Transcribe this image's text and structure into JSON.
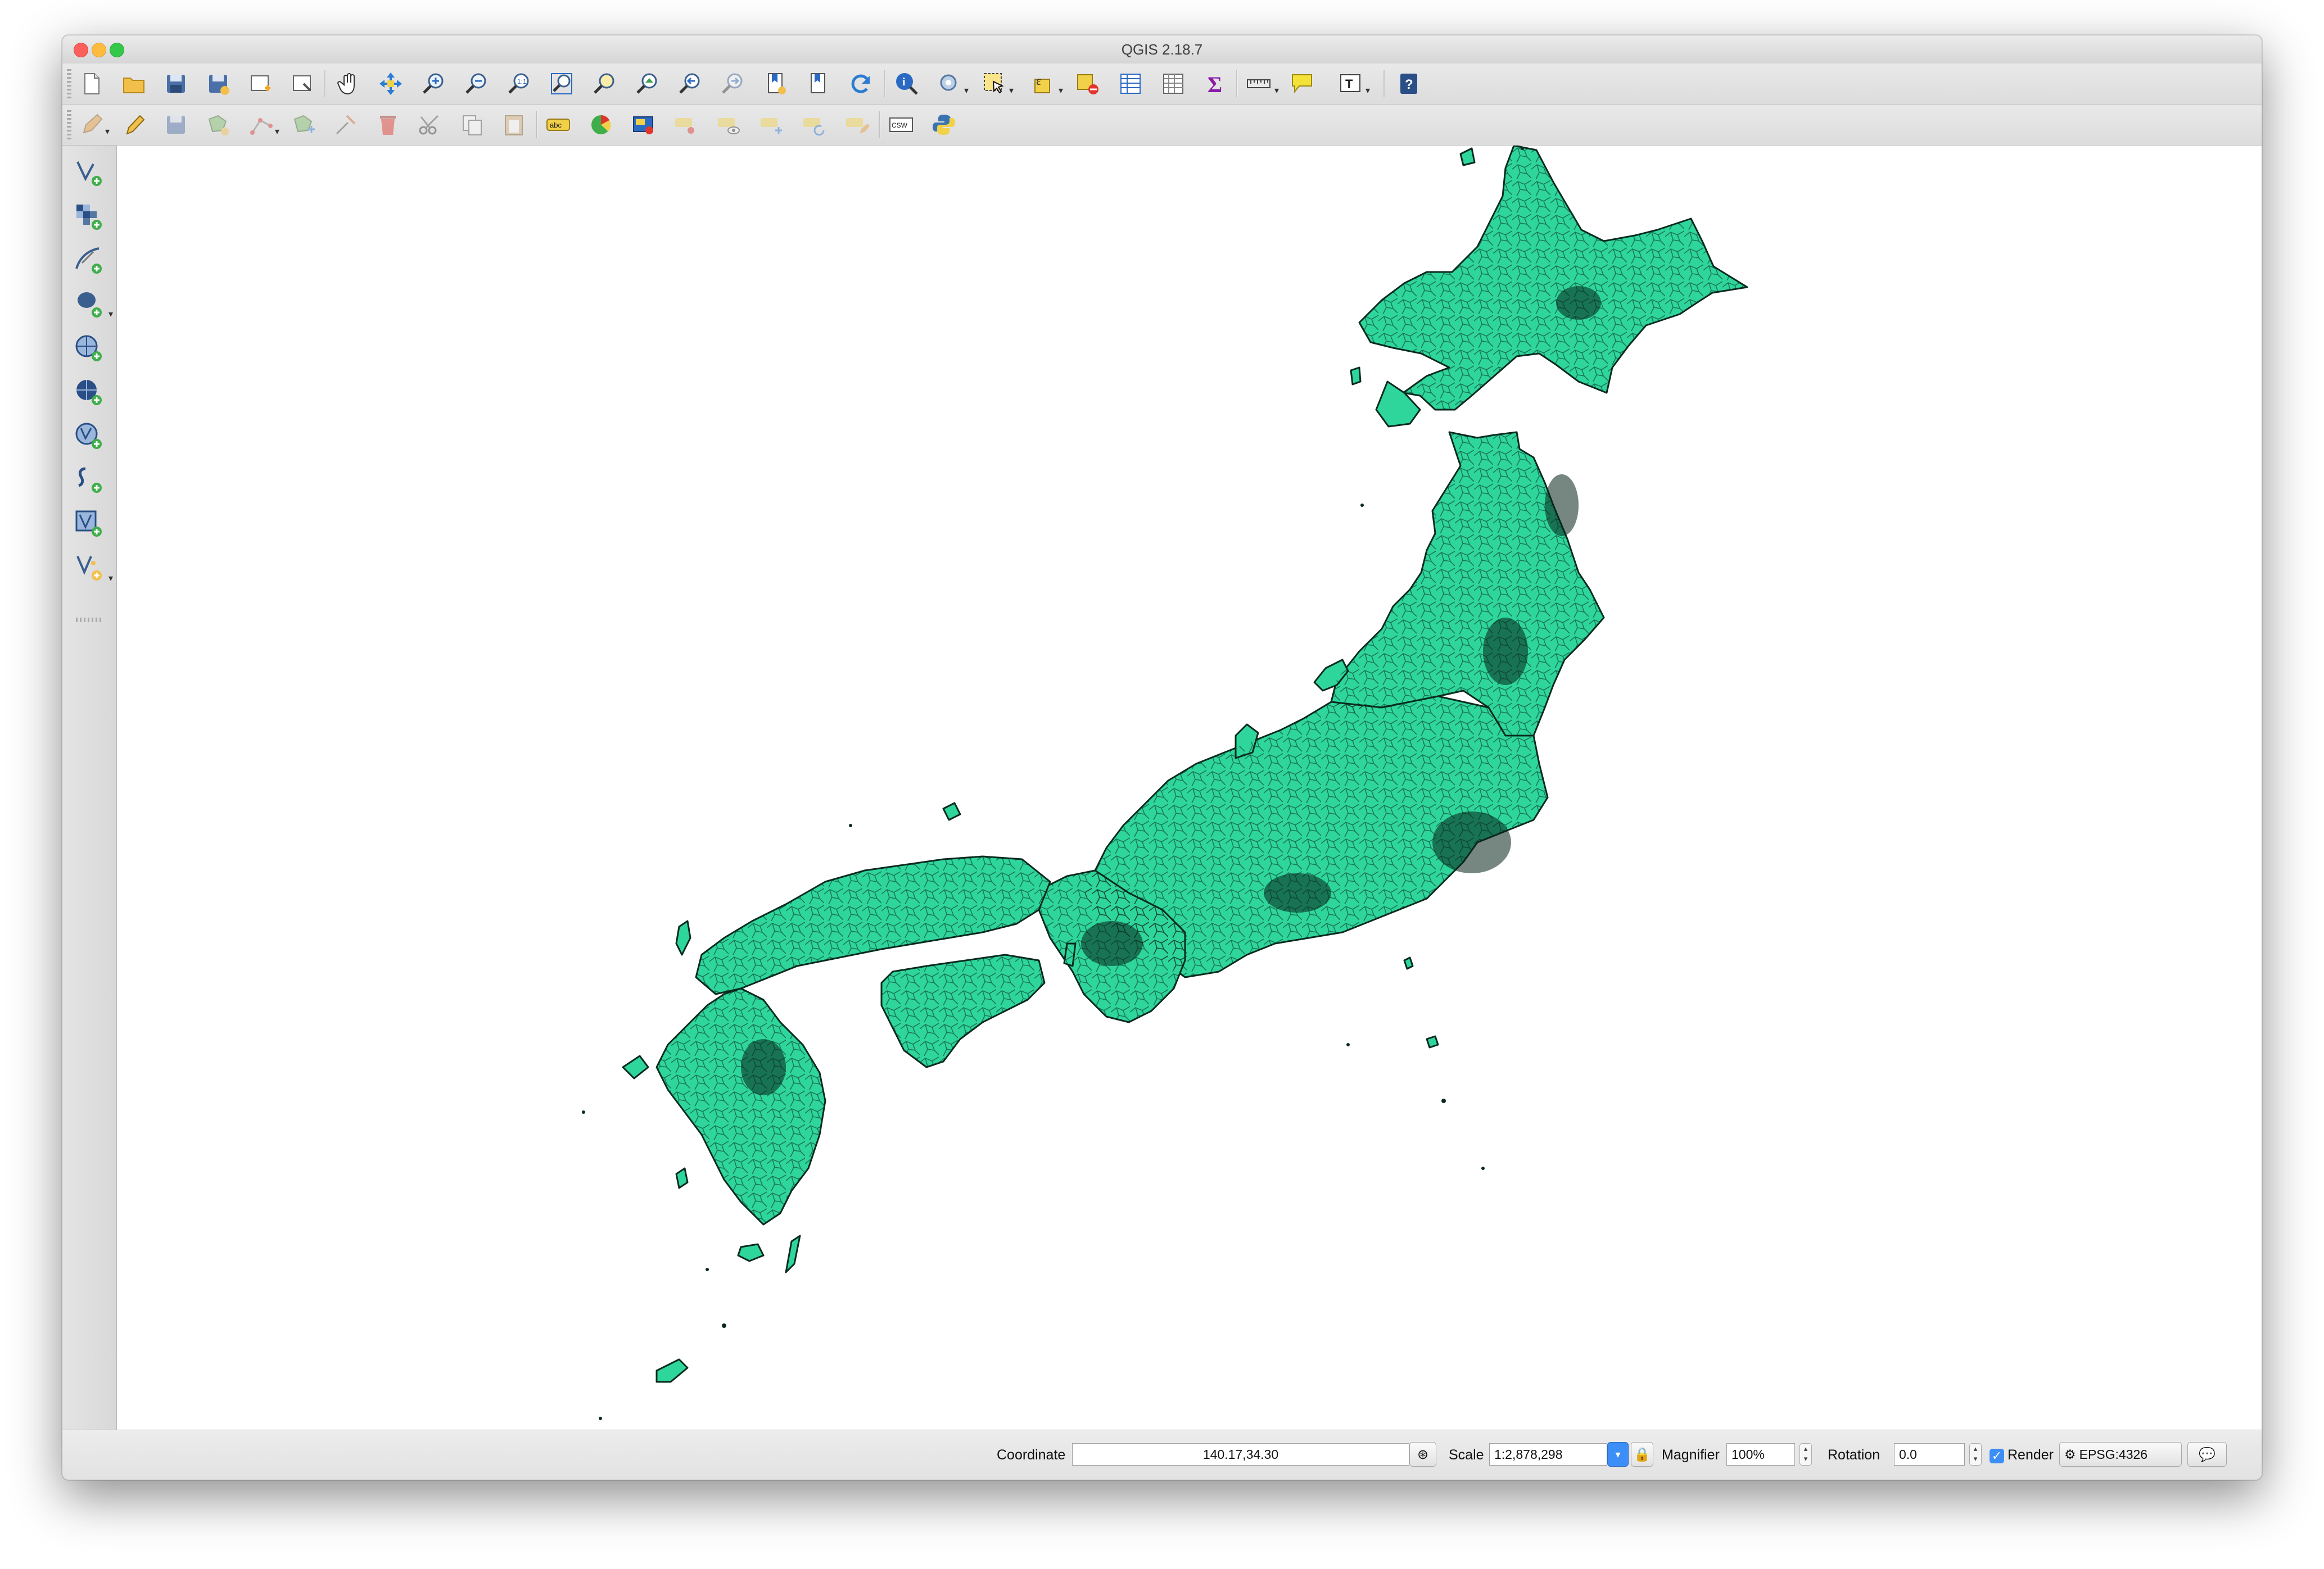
{
  "window": {
    "title": "QGIS 2.18.7"
  },
  "toolbar_primary": {
    "icons": [
      "new-project-icon",
      "open-project-icon",
      "save-project-icon",
      "save-as-icon",
      "new-print-composer-icon",
      "composer-manager-icon",
      "pan-icon",
      "pan-to-selection-icon",
      "zoom-in-icon",
      "zoom-out-icon",
      "zoom-actual-icon",
      "zoom-full-icon",
      "zoom-to-selection-icon",
      "zoom-to-layer-icon",
      "zoom-last-icon",
      "zoom-next-icon",
      "new-bookmark-icon",
      "show-bookmarks-icon",
      "refresh-icon",
      "identify-icon",
      "run-feature-action-icon",
      "select-features-icon",
      "select-by-expression-icon",
      "deselect-all-icon",
      "attribute-table-icon",
      "field-calculator-icon",
      "statistics-icon",
      "measure-icon",
      "map-tips-icon",
      "text-annotation-icon",
      "help-icon"
    ]
  },
  "toolbar_secondary": {
    "icons": [
      "current-edits-icon",
      "toggle-editing-icon",
      "save-layer-edits-icon",
      "add-feature-icon",
      "node-tool-icon",
      "move-feature-icon",
      "digitize-icon",
      "delete-selected-icon",
      "cut-features-icon",
      "copy-features-icon",
      "paste-features-icon",
      "label-tool-icon",
      "layer-diagram-icon",
      "layer-labeling-icon",
      "pin-labels-icon",
      "show-hide-labels-icon",
      "move-label-icon",
      "rotate-label-icon",
      "change-label-icon",
      "metasearch-icon",
      "python-console-icon"
    ],
    "label_abc": "abc",
    "label_csw": "CSW"
  },
  "left_toolbar": {
    "icons": [
      "add-vector-layer-icon",
      "add-raster-layer-icon",
      "add-delimited-text-layer-icon",
      "add-postgis-layer-icon",
      "add-wms-layer-icon",
      "add-wcs-layer-icon",
      "add-wfs-layer-icon",
      "add-spatialite-layer-icon",
      "add-virtual-layer-icon",
      "new-shapefile-layer-icon"
    ]
  },
  "map": {
    "fill_color": "#2fd69c",
    "stroke_color": "#0a2a20"
  },
  "statusbar": {
    "coordinate_label": "Coordinate",
    "coordinate_value": "140.17,34.30",
    "scale_label": "Scale",
    "scale_value": "1:2,878,298",
    "magnifier_label": "Magnifier",
    "magnifier_value": "100%",
    "rotation_label": "Rotation",
    "rotation_value": "0.0",
    "render_label": "Render",
    "render_checked": true,
    "crs_label": "EPSG:4326"
  }
}
